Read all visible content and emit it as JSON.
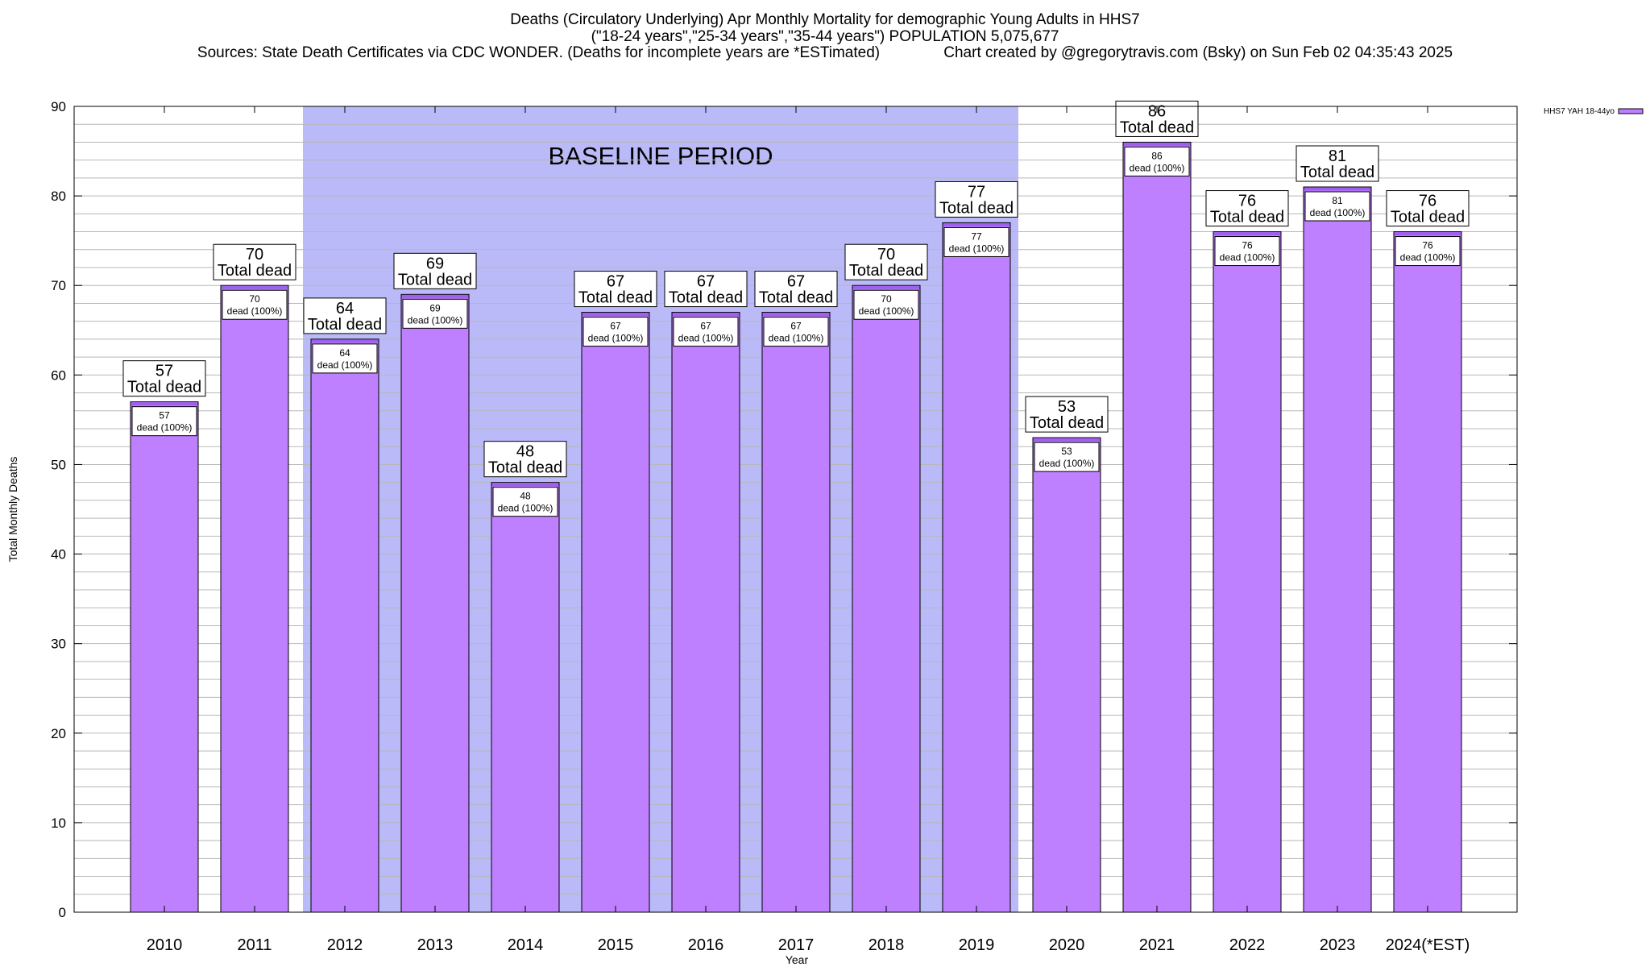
{
  "header": {
    "title_line1": "Deaths (Circulatory Underlying) Apr Monthly Mortality for demographic Young Adults in HHS7",
    "title_line2": "(\"18-24 years\",\"25-34 years\",\"35-44 years\") POPULATION 5,075,677",
    "title_line3": "Sources: State Death Certificates via CDC WONDER. (Deaths for incomplete years are *ESTimated)               Chart created by @gregorytravis.com (Bsky) on Sun Feb 02 04:35:43 2025"
  },
  "chart_data": {
    "type": "bar",
    "xlabel": "Year",
    "ylabel": "Total Monthly Deaths",
    "ylim": [
      0,
      90
    ],
    "yticks": [
      0,
      10,
      20,
      30,
      40,
      50,
      60,
      70,
      80,
      90
    ],
    "grid": "horizontal minor gridlines every 2",
    "legend": {
      "position": "top-right",
      "entries": [
        "HHS7 YAH 18-44yo"
      ]
    },
    "categories": [
      "2010",
      "2011",
      "2012",
      "2013",
      "2014",
      "2015",
      "2016",
      "2017",
      "2018",
      "2019",
      "2020",
      "2021",
      "2022",
      "2023",
      "2024(*EST)"
    ],
    "series": [
      {
        "name": "HHS7 YAH 18-44yo",
        "values": [
          57,
          70,
          64,
          69,
          48,
          67,
          67,
          67,
          70,
          77,
          53,
          86,
          76,
          81,
          76
        ]
      }
    ],
    "baseline": {
      "label": "BASELINE PERIOD",
      "from": "2012",
      "to": "2019"
    },
    "total_label": "Total dead",
    "inner_label": "dead (100%)",
    "colors": {
      "bar": "#bf80ff",
      "bar_top": "#a060ef",
      "baseline": "#babaf8",
      "grid": "#b8b8b8"
    }
  }
}
